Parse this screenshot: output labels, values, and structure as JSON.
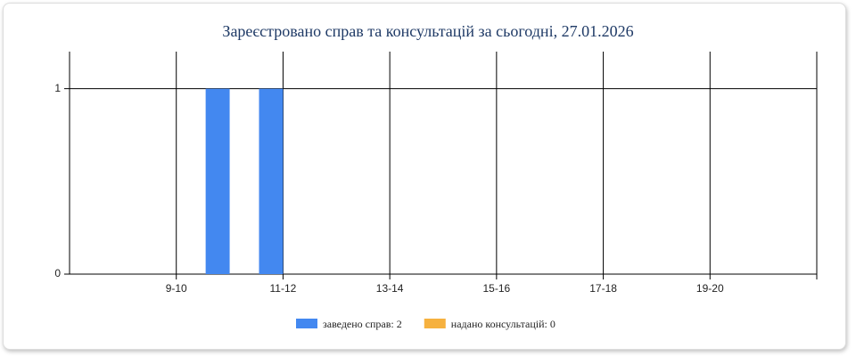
{
  "chart_data": {
    "type": "bar",
    "title": "Зареєстровано справ та консультацій за сьогодні, 27.01.2026",
    "x": [
      7,
      8,
      9,
      10,
      11,
      12,
      13,
      14,
      15,
      16,
      17,
      18,
      19,
      20
    ],
    "series": [
      {
        "name": "заведено справ: 2",
        "color": "#4388f0",
        "values": [
          0,
          0,
          0,
          1,
          1,
          0,
          0,
          0,
          0,
          0,
          0,
          0,
          0,
          0
        ]
      },
      {
        "name": "надано консультацій: 0",
        "color": "#f6b13f",
        "values": [
          0,
          0,
          0,
          0,
          0,
          0,
          0,
          0,
          0,
          0,
          0,
          0,
          0,
          0
        ]
      }
    ],
    "xlim": [
      7,
      21
    ],
    "xticks": [
      {
        "value": 9,
        "label": "9-10"
      },
      {
        "value": 11,
        "label": "11-12"
      },
      {
        "value": 13,
        "label": "13-14"
      },
      {
        "value": 15,
        "label": "15-16"
      },
      {
        "value": 17,
        "label": "17-18"
      },
      {
        "value": 19,
        "label": "19-20"
      },
      {
        "value": 21,
        "label": ""
      }
    ],
    "ylim": [
      0,
      1.2
    ],
    "yticks": [
      0,
      1
    ],
    "grid": true
  }
}
